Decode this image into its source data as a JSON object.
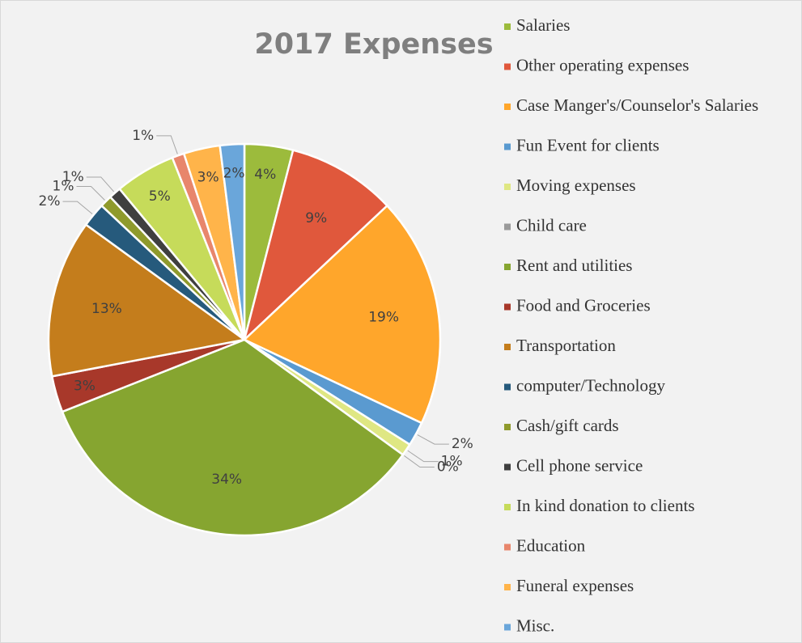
{
  "chart_data": {
    "type": "pie",
    "title": "2017 Expenses",
    "categories": [
      "Salaries",
      "Other operating expenses",
      "Case Manger's/Counselor's Salaries",
      "Fun Event for clients",
      "Moving expenses",
      "Child care",
      "Rent and utilities",
      "Food and Groceries",
      "Transportation",
      "computer/Technology",
      "Cash/gift cards",
      "Cell phone service",
      "In kind donation to clients",
      "Education",
      "Funeral expenses",
      "Misc."
    ],
    "values": [
      4,
      9,
      19,
      2,
      1,
      0,
      34,
      3,
      13,
      2,
      1,
      1,
      5,
      1,
      3,
      2
    ],
    "value_labels": [
      "4%",
      "9%",
      "19%",
      "2%",
      "1%",
      "0%",
      "34%",
      "3%",
      "13%",
      "2%",
      "1%",
      "1%",
      "5%",
      "1%",
      "3%",
      "2%"
    ],
    "colors": [
      "#9cbb3c",
      "#e0583c",
      "#ffa62b",
      "#5a9ad0",
      "#dfe783",
      "#9a9a9a",
      "#86a530",
      "#a8382a",
      "#c47d1c",
      "#265a7c",
      "#8f9a2c",
      "#3f3f3f",
      "#c6db5a",
      "#e8866c",
      "#ffb44a",
      "#6aa6da"
    ],
    "legend": "right"
  }
}
